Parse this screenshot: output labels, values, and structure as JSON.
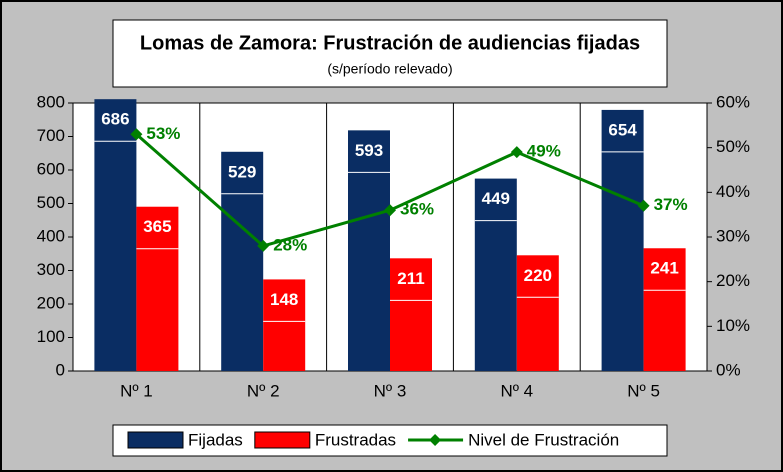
{
  "chart_data": {
    "type": "bar",
    "title": "Lomas de Zamora: Frustración de audiencias fijadas",
    "subtitle": "(s/período relevado)",
    "categories": [
      "Nº 1",
      "Nº 2",
      "Nº 3",
      "Nº 4",
      "Nº 5"
    ],
    "series": [
      {
        "name": "Fijadas",
        "color": "#0a2d63",
        "type": "bar",
        "values": [
          686,
          529,
          593,
          449,
          654
        ]
      },
      {
        "name": "Frustradas",
        "color": "#ff0000",
        "type": "bar",
        "values": [
          365,
          148,
          211,
          220,
          241
        ]
      },
      {
        "name": "Nivel de Frustración",
        "color": "#008000",
        "type": "line",
        "axis": "y2",
        "values": [
          53,
          28,
          36,
          49,
          37
        ],
        "value_labels": [
          "53%",
          "28%",
          "36%",
          "49%",
          "37%"
        ]
      }
    ],
    "ylim": [
      0,
      800
    ],
    "yticks": [
      0,
      100,
      200,
      300,
      400,
      500,
      600,
      700,
      800
    ],
    "y2lim": [
      0,
      60
    ],
    "y2ticks": [
      {
        "value": 0,
        "label": "0%"
      },
      {
        "value": 10,
        "label": "10%"
      },
      {
        "value": 20,
        "label": "20%"
      },
      {
        "value": 30,
        "label": "30%"
      },
      {
        "value": 40,
        "label": "40%"
      },
      {
        "value": 50,
        "label": "50%"
      },
      {
        "value": 60,
        "label": "60%"
      }
    ],
    "legend": "bottom"
  }
}
